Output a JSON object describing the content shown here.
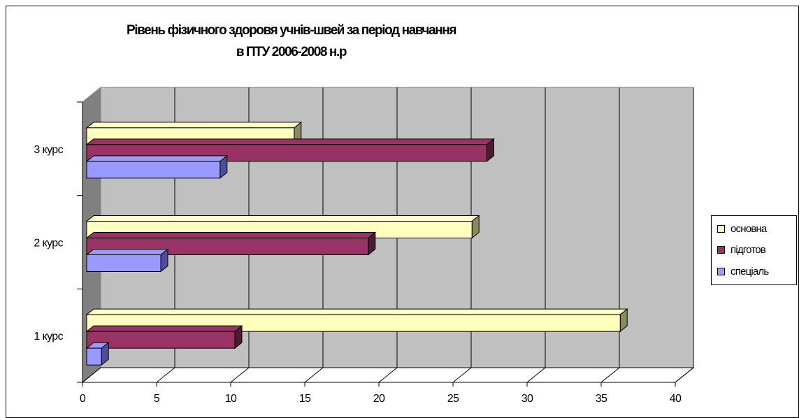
{
  "chart_data": {
    "type": "bar",
    "orientation": "horizontal",
    "style": "3d",
    "title": "Рівень фізичного здоровя учнів-швей за період навчання",
    "subtitle": "в ПТУ 2006-2008 н.р",
    "categories": [
      "1 курс",
      "2 курс",
      "3 курс"
    ],
    "series": [
      {
        "name": "основна",
        "color": "#ffffc0",
        "side_color": "#8a8a60",
        "values": [
          36,
          26,
          14
        ]
      },
      {
        "name": "підготов",
        "color": "#993366",
        "side_color": "#4d1a33",
        "values": [
          10,
          19,
          27
        ]
      },
      {
        "name": "спеціаль",
        "color": "#9999ff",
        "side_color": "#4d4d99",
        "values": [
          1,
          5,
          9
        ]
      }
    ],
    "xlim": [
      0,
      40
    ],
    "xticks": [
      "0",
      "5",
      "10",
      "15",
      "20",
      "25",
      "30",
      "35",
      "40"
    ],
    "grid": true,
    "wall_color": "#c0c0c0",
    "legend_position": "right"
  }
}
